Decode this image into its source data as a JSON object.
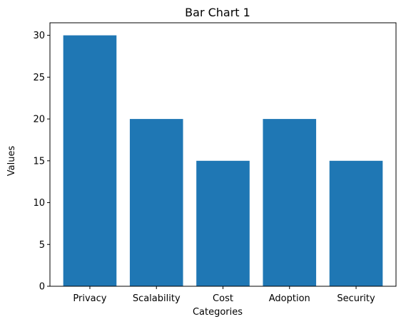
{
  "chart_data": {
    "type": "bar",
    "title": "Bar Chart 1",
    "xlabel": "Categories",
    "ylabel": "Values",
    "categories": [
      "Privacy",
      "Scalability",
      "Cost",
      "Adoption",
      "Security"
    ],
    "values": [
      30,
      20,
      15,
      20,
      15
    ],
    "ylim": [
      0,
      31.5
    ],
    "yticks": [
      0,
      5,
      10,
      15,
      20,
      25,
      30
    ],
    "grid": false,
    "bar_color": "#1f77b4"
  }
}
